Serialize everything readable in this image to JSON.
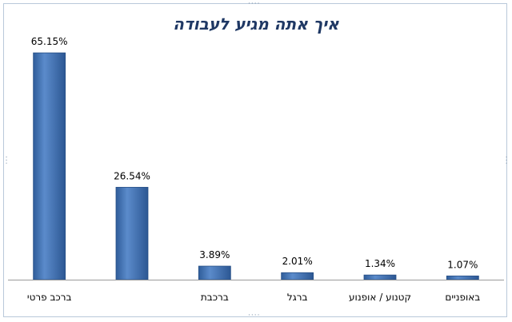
{
  "chart_data": {
    "type": "bar",
    "title": "איך אתה מגיע לעבודה",
    "categories": [
      "ברכב פרטי",
      "",
      "ברכבת",
      "ברגל",
      "קטנוע / אופנוע",
      "באופניים"
    ],
    "values": [
      65.15,
      26.54,
      3.89,
      2.01,
      1.34,
      1.07
    ],
    "value_labels": [
      "65.15%",
      "26.54%",
      "3.89%",
      "2.01%",
      "1.34%",
      "1.07%"
    ],
    "ylim": [
      0,
      70
    ],
    "grid": false,
    "legend": "none",
    "bar_color": "#4a78b8",
    "bar_edge_color": "#274f86"
  }
}
